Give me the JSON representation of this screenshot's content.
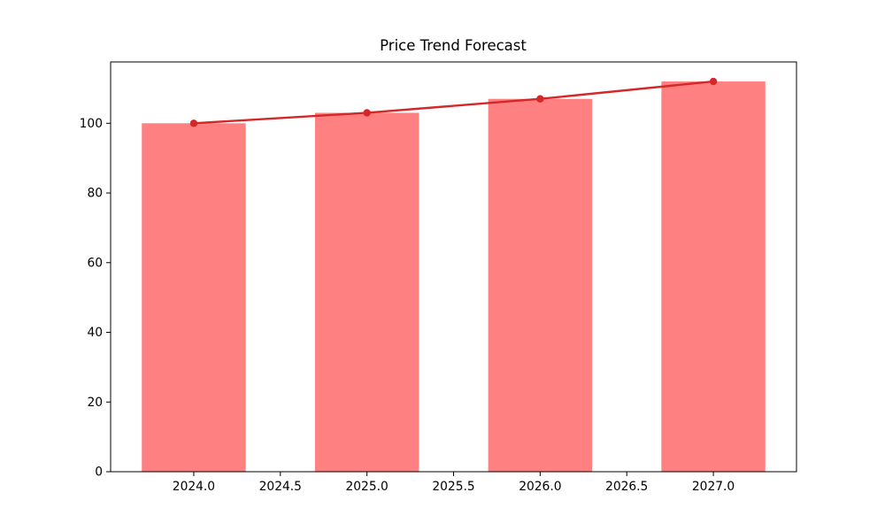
{
  "chart_data": {
    "type": "bar",
    "title": "Price Trend Forecast",
    "x": [
      2024,
      2025,
      2026,
      2027
    ],
    "series": [
      {
        "name": "price-bars",
        "type": "bar",
        "values": [
          100,
          103,
          107,
          112
        ],
        "color": "#ff8080"
      },
      {
        "name": "trend-line",
        "type": "line",
        "values": [
          100,
          103,
          107,
          112
        ],
        "color": "#d62728",
        "marker": "circle"
      }
    ],
    "xlabel": "",
    "ylabel": "",
    "xlim": [
      2023.52,
      2027.48
    ],
    "ylim": [
      0,
      117.6
    ],
    "xticks": [
      2024.0,
      2024.5,
      2025.0,
      2025.5,
      2026.0,
      2026.5,
      2027.0
    ],
    "xtick_labels": [
      "2024.0",
      "2024.5",
      "2025.0",
      "2025.5",
      "2026.0",
      "2026.5",
      "2027.0"
    ],
    "yticks": [
      0,
      20,
      40,
      60,
      80,
      100
    ],
    "ytick_labels": [
      "0",
      "20",
      "40",
      "60",
      "80",
      "100"
    ],
    "bar_width_years": 0.6,
    "grid": false,
    "legend": null,
    "background_color": "#ffffff",
    "spine_color": "#000000"
  }
}
